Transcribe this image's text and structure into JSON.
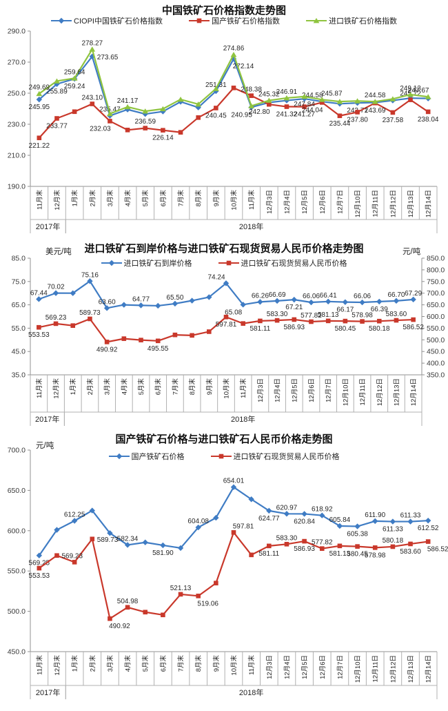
{
  "accent_colors": {
    "blue": "#3F7CC4",
    "red": "#C9382B",
    "green": "#8FC43F"
  },
  "chart_data": [
    {
      "type": "line",
      "title": "中国铁矿石价格指数走势图",
      "categories": [
        "11月末",
        "12月末",
        "1月末",
        "2月末",
        "3月末",
        "4月末",
        "5月末",
        "6月末",
        "7月末",
        "8月末",
        "9月末",
        "10月末",
        "11月末",
        "12月3日",
        "12月4日",
        "12月5日",
        "12月6日",
        "12月7日",
        "12月10日",
        "12月11日",
        "12月12日",
        "12月13日",
        "12月14日"
      ],
      "category_groups": [
        {
          "label": "2017年",
          "cols": 2
        },
        {
          "label": "2018年",
          "cols": 21
        }
      ],
      "y_axis_left": {
        "min": 190,
        "max": 290,
        "step": 20,
        "unit": ""
      },
      "legend_position": "top",
      "grid": false,
      "series": [
        {
          "name": "CIOPI中国铁矿石价格指数",
          "color": "#3F7CC4",
          "marker": "diamond",
          "axis": "left",
          "values": [
            245.95,
            255.89,
            259.24,
            273.65,
            235.47,
            239.5,
            236.59,
            238.2,
            244.5,
            240.8,
            251.31,
            272.14,
            240.95,
            244.0,
            245.3,
            246.4,
            244.58,
            243.2,
            243.71,
            244.0,
            245.3,
            246.8,
            246.6
          ],
          "point_labels": {
            "0": [
              "245.95",
              "b"
            ],
            "1": [
              "255.89",
              "b"
            ],
            "2": [
              "259.24",
              "b"
            ],
            "3": [
              "273.65",
              "r"
            ],
            "4": [
              "235.47",
              "a"
            ],
            "6": [
              "236.59",
              "b"
            ],
            "10": [
              "251.31",
              "a"
            ],
            "11": [
              "272.14",
              "br"
            ],
            "12": [
              "240.95",
              "bl"
            ],
            "16": [
              "244.58",
              "al"
            ],
            "18": [
              "243.71",
              "b"
            ]
          }
        },
        {
          "name": "国产铁矿石价格指数",
          "color": "#C9382B",
          "marker": "square",
          "axis": "left",
          "values": [
            221.22,
            233.77,
            238.1,
            243.1,
            232.03,
            226.3,
            227.5,
            226.14,
            224.8,
            234.3,
            240.45,
            253.4,
            248.38,
            242.8,
            241.32,
            241.27,
            244.04,
            235.44,
            237.8,
            243.69,
            237.58,
            245.72,
            238.04
          ],
          "point_labels": {
            "0": [
              "221.22",
              "b"
            ],
            "1": [
              "233.77",
              "b"
            ],
            "3": [
              "243.10",
              "a"
            ],
            "4": [
              "232.03",
              "bl"
            ],
            "7": [
              "226.14",
              "b"
            ],
            "10": [
              "240.45",
              "b"
            ],
            "12": [
              "248.38",
              "a"
            ],
            "13": [
              "242.80",
              "bl"
            ],
            "14": [
              "241.32",
              "b"
            ],
            "15": [
              "241.27",
              "b"
            ],
            "16": [
              "244.04",
              "bl"
            ],
            "17": [
              "235.44",
              "b"
            ],
            "18": [
              "237.80",
              "b"
            ],
            "19": [
              "243.69",
              "b"
            ],
            "20": [
              "237.58",
              "b"
            ],
            "21": [
              "245.72",
              "a"
            ],
            "22": [
              "238.04",
              "b"
            ]
          }
        },
        {
          "name": "进口铁矿石价格指数",
          "color": "#8FC43F",
          "marker": "triangle",
          "axis": "left",
          "values": [
            249.69,
            257.8,
            259.64,
            278.27,
            236.8,
            241.17,
            238.4,
            239.9,
            246.0,
            242.9,
            252.9,
            274.86,
            241.8,
            245.32,
            246.91,
            247.84,
            245.87,
            244.6,
            245.0,
            244.58,
            246.3,
            249.13,
            247.67
          ],
          "point_labels": {
            "0": [
              "249.69",
              "a"
            ],
            "2": [
              "259.64",
              "a"
            ],
            "3": [
              "278.27",
              "a"
            ],
            "5": [
              "241.17",
              "a"
            ],
            "11": [
              "274.86",
              "a"
            ],
            "13": [
              "245.32",
              "a"
            ],
            "14": [
              "246.91",
              "a"
            ],
            "15": [
              "247.84",
              "b"
            ],
            "16": [
              "245.87",
              "ar"
            ],
            "19": [
              "244.58",
              "a"
            ],
            "21": [
              "249.13",
              "a"
            ],
            "22": [
              "247.67",
              "al"
            ]
          }
        }
      ]
    },
    {
      "type": "line",
      "title": "进口铁矿石到岸价格与进口铁矿石现货贸易人民币价格走势图",
      "categories": [
        "11月末",
        "12月末",
        "1月末",
        "2月末",
        "3月末",
        "4月末",
        "5月末",
        "6月末",
        "7月末",
        "8月末",
        "9月末",
        "10月末",
        "11月末",
        "12月3日",
        "12月4日",
        "12月5日",
        "12月6日",
        "12月7日",
        "12月10日",
        "12月11日",
        "12月12日",
        "12月13日",
        "12月14日"
      ],
      "category_groups": [
        {
          "label": "2017年",
          "cols": 2
        },
        {
          "label": "2018年",
          "cols": 21
        }
      ],
      "y_axis_left": {
        "min": 35,
        "max": 85,
        "step": 10,
        "unit": "美元/吨"
      },
      "y_axis_right": {
        "min": 350,
        "max": 850,
        "step": 50,
        "unit": "元/吨"
      },
      "legend_position": "top",
      "grid": false,
      "series": [
        {
          "name": "进口铁矿石到岸价格",
          "color": "#3F7CC4",
          "marker": "diamond",
          "axis": "left",
          "values": [
            67.44,
            70.02,
            70.0,
            75.16,
            63.6,
            65.0,
            64.77,
            64.6,
            65.5,
            66.8,
            68.3,
            74.24,
            65.08,
            66.26,
            66.69,
            67.21,
            66.06,
            66.41,
            66.17,
            66.06,
            66.39,
            66.7,
            67.29
          ],
          "point_labels": {
            "0": [
              "67.44",
              "a"
            ],
            "1": [
              "70.02",
              "a"
            ],
            "3": [
              "75.16",
              "a"
            ],
            "4": [
              "63.60",
              "a"
            ],
            "6": [
              "64.77",
              "a"
            ],
            "8": [
              "65.50",
              "a"
            ],
            "11": [
              "74.24",
              "al"
            ],
            "12": [
              "65.08",
              "bl"
            ],
            "13": [
              "66.26",
              "a"
            ],
            "14": [
              "66.69",
              "a"
            ],
            "15": [
              "67.21",
              "b"
            ],
            "16": [
              "66.06",
              "a"
            ],
            "17": [
              "66.41",
              "a"
            ],
            "18": [
              "66.17",
              "b"
            ],
            "19": [
              "66.06",
              "a"
            ],
            "20": [
              "66.39",
              "b"
            ],
            "21": [
              "66.70",
              "a"
            ],
            "22": [
              "67.29",
              "a"
            ]
          }
        },
        {
          "name": "进口铁矿石现货贸易人民币价格",
          "color": "#C9382B",
          "marker": "square",
          "axis": "right",
          "values": [
            553.53,
            569.23,
            561.0,
            589.73,
            490.92,
            504.98,
            499.0,
            495.55,
            521.13,
            519.06,
            535.0,
            597.81,
            570.0,
            581.11,
            583.3,
            586.93,
            577.82,
            581.13,
            580.45,
            578.98,
            580.18,
            583.6,
            586.52
          ],
          "point_labels": {
            "0": [
              "553.53",
              "b"
            ],
            "1": [
              "569.23",
              "a"
            ],
            "3": [
              "589.73",
              "a"
            ],
            "4": [
              "490.92",
              "b"
            ],
            "7": [
              "495.55",
              "b"
            ],
            "11": [
              "597.81",
              "b"
            ],
            "13": [
              "581.11",
              "b"
            ],
            "14": [
              "583.30",
              "a"
            ],
            "15": [
              "586.93",
              "b"
            ],
            "16": [
              "577.82",
              "a"
            ],
            "17": [
              "581.13",
              "a"
            ],
            "18": [
              "580.45",
              "b"
            ],
            "19": [
              "578.98",
              "a"
            ],
            "20": [
              "580.18",
              "b"
            ],
            "21": [
              "583.60",
              "a"
            ],
            "22": [
              "586.52",
              "b"
            ]
          }
        }
      ]
    },
    {
      "type": "line",
      "title": "国产铁矿石价格与进口铁矿石人民币价格走势图",
      "categories": [
        "11月末",
        "12月末",
        "1月末",
        "2月末",
        "3月末",
        "4月末",
        "5月末",
        "6月末",
        "7月末",
        "8月末",
        "9月末",
        "10月末",
        "11月末",
        "12月3日",
        "12月4日",
        "12月5日",
        "12月6日",
        "12月7日",
        "12月10日",
        "12月11日",
        "12月12日",
        "12月13日",
        "12月14日"
      ],
      "category_groups": [
        {
          "label": "2017年",
          "cols": 2
        },
        {
          "label": "2018年",
          "cols": 21
        }
      ],
      "y_axis_left": {
        "min": 450,
        "max": 700,
        "step": 50,
        "unit": "元/吨"
      },
      "legend_position": "top",
      "grid": false,
      "series": [
        {
          "name": "国产铁矿石价格",
          "color": "#3F7CC4",
          "marker": "diamond",
          "axis": "left",
          "values": [
            569.25,
            601.0,
            612.25,
            625.0,
            597.0,
            582.34,
            585.5,
            581.9,
            578.5,
            604.08,
            616.0,
            654.01,
            639.0,
            624.77,
            620.97,
            620.84,
            618.92,
            605.84,
            605.38,
            611.9,
            611.33,
            611.33,
            612.52
          ],
          "point_labels": {
            "0": [
              "569.25",
              "b"
            ],
            "2": [
              "612.25",
              "a"
            ],
            "5": [
              "582.34",
              "a"
            ],
            "7": [
              "581.90",
              "b"
            ],
            "9": [
              "604.08",
              "a"
            ],
            "11": [
              "654.01",
              "a"
            ],
            "13": [
              "624.77",
              "b"
            ],
            "14": [
              "620.97",
              "a"
            ],
            "15": [
              "620.84",
              "b"
            ],
            "16": [
              "618.92",
              "a"
            ],
            "17": [
              "605.84",
              "a"
            ],
            "18": [
              "605.38",
              "b"
            ],
            "19": [
              "611.90",
              "a"
            ],
            "20": [
              "611.33",
              "b"
            ],
            "21": [
              "611.33",
              "a"
            ],
            "22": [
              "612.52",
              "b"
            ]
          }
        },
        {
          "name": "进口铁矿石现货贸易人民币价格",
          "color": "#C9382B",
          "marker": "square",
          "axis": "left",
          "values": [
            553.53,
            569.23,
            561.0,
            589.73,
            490.92,
            504.98,
            499.0,
            495.55,
            521.13,
            519.06,
            535.0,
            597.81,
            570.0,
            581.11,
            583.3,
            586.93,
            577.82,
            581.13,
            580.45,
            578.98,
            580.18,
            583.6,
            586.52
          ],
          "point_labels": {
            "0": [
              "553.53",
              "b"
            ],
            "1": [
              "569.23",
              "r"
            ],
            "3": [
              "589.73",
              "r"
            ],
            "4": [
              "490.92",
              "br"
            ],
            "5": [
              "504.98",
              "a"
            ],
            "8": [
              "521.13",
              "a"
            ],
            "9": [
              "519.06",
              "br"
            ],
            "11": [
              "597.81",
              "ar"
            ],
            "13": [
              "581.11",
              "b"
            ],
            "14": [
              "583.30",
              "a"
            ],
            "15": [
              "586.93",
              "b"
            ],
            "16": [
              "577.82",
              "a"
            ],
            "17": [
              "581.13",
              "b"
            ],
            "18": [
              "580.45",
              "b"
            ],
            "19": [
              "578.98",
              "b"
            ],
            "20": [
              "580.18",
              "a"
            ],
            "21": [
              "583.60",
              "b"
            ],
            "22": [
              "586.52",
              "br"
            ]
          }
        }
      ]
    }
  ]
}
